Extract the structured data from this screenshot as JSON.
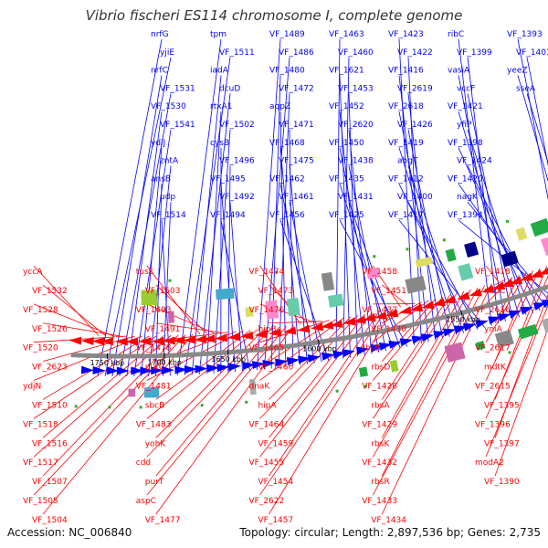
{
  "title": "Vibrio fischeri ES114 chromosome I, complete genome",
  "footer": {
    "accession": "Accession: NC_006840",
    "stats": "Topology: circular; Length: 2,897,536 bp; Genes: 2,735"
  },
  "colors": {
    "forward_strand": "#0000ff",
    "reverse_strand": "#ff0000",
    "backbone": "#888888",
    "title": "#333333"
  },
  "ticks": [
    "1750 kbp",
    "1700 kbp",
    "1650 kbp",
    "1600 kbp",
    "1550 kbp"
  ],
  "forward_labels": [
    "nrfG",
    "yjiE",
    "nrfC",
    "VF_1531",
    "VF_1530",
    "VF_1541",
    "ydiJ",
    "zntA",
    "ansB",
    "udp",
    "VF_1514",
    "tpm",
    "VF_1511",
    "iadA",
    "dcuD",
    "rtxA1",
    "VF_1502",
    "cysB",
    "VF_1496",
    "VF_1495",
    "VF_1492",
    "VF_1494",
    "VF_1489",
    "VF_1486",
    "VF_1480",
    "VF_1472",
    "aqpZ",
    "VF_1471",
    "VF_1468",
    "VF_1475",
    "VF_1462",
    "VF_1461",
    "VF_1456",
    "VF_1463",
    "VF_1460",
    "VF_1621",
    "VF_1453",
    "VF_1452",
    "VF_2620",
    "VF_1450",
    "VF_1438",
    "VF_1435",
    "VF_1431",
    "VF_1425",
    "VF_1423",
    "VF_1422",
    "VF_1416",
    "VF_2619",
    "VF_2618",
    "VF_1426",
    "VF_1419",
    "abgT",
    "VF_1412",
    "VF_1400",
    "VF_1417",
    "ribC",
    "VF_1399",
    "vasiA",
    "vccF",
    "VF_1421",
    "yfiP",
    "VF_1398",
    "VF_1424",
    "VF_1420",
    "nagK",
    "VF_1394",
    "VF_1393",
    "VF_1401",
    "yeeZ",
    "sseA"
  ],
  "reverse_labels": [
    "yccA",
    "VF_1532",
    "VF_1528",
    "VF_1526",
    "VF_1520",
    "VF_2623",
    "ydjN",
    "VF_1510",
    "VF_1518",
    "VF_1516",
    "VF_1517",
    "VF_1507",
    "VF_1505",
    "VF_1504",
    "tusE",
    "VF_1503",
    "VF_1493",
    "VF_1491",
    "VF_1478",
    "purC",
    "VF_1481",
    "sbcB",
    "VF_1483",
    "yohK",
    "cdd",
    "purT",
    "aspC",
    "VF_1477",
    "VF_1474",
    "VF_1473",
    "VF_1476",
    "hipB",
    "VF_1465",
    "VF_1466",
    "dnaK",
    "hipA",
    "VF_1464",
    "VF_1459",
    "VF_1455",
    "VF_1454",
    "VF_2622",
    "VF_1457",
    "VF_1458",
    "VF_1451",
    "VF_1437",
    "VF_1430",
    "rbsB",
    "rbsD",
    "VF_1428",
    "rbsA",
    "VF_1429",
    "rbsK",
    "VF_1432",
    "rbsR",
    "VF_1433",
    "VF_1434",
    "VF_1418",
    "mlpC",
    "VF_2616",
    "yniA",
    "VF_2617",
    "mdtK",
    "VF_2615",
    "VF_1395",
    "VF_1396",
    "VF_1397",
    "modA2",
    "VF_1390"
  ]
}
